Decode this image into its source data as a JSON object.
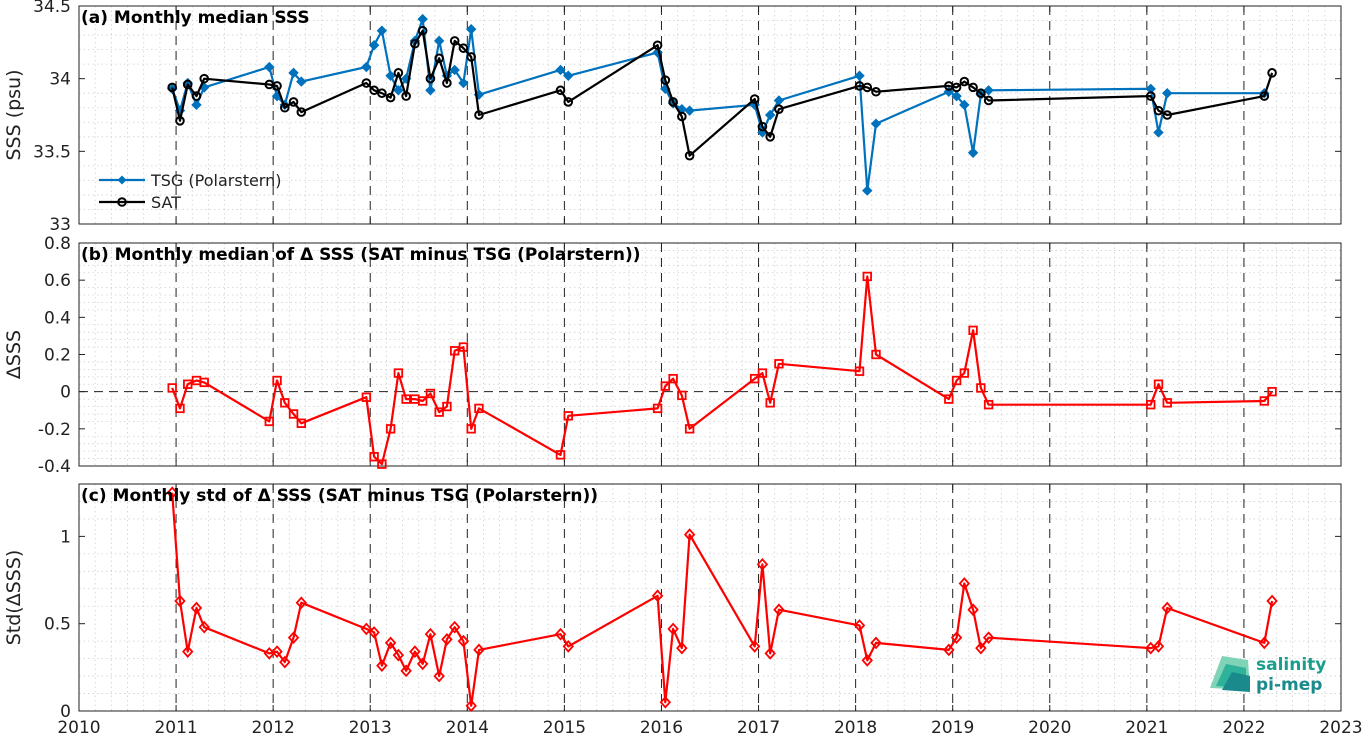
{
  "chart_data": [
    {
      "type": "line",
      "title": "(a) Monthly median SSS",
      "ylabel": "SSS (psu)",
      "xlabel": "",
      "xlim": [
        2010,
        2023
      ],
      "ylim": [
        33,
        34.5
      ],
      "yticks": [
        33,
        33.5,
        34,
        34.5
      ],
      "ytick_labels": [
        "33",
        "33.5",
        "34",
        "34.5"
      ],
      "legend": "lower-left",
      "grid": true,
      "series": [
        {
          "name": "TSG (Polarstern)",
          "color": "#0072bd",
          "marker": "diamond",
          "x": [
            2010.96,
            2011.04,
            2011.12,
            2011.21,
            2011.29,
            2011.96,
            2012.04,
            2012.12,
            2012.21,
            2012.29,
            2012.96,
            2013.04,
            2013.12,
            2013.21,
            2013.29,
            2013.37,
            2013.46,
            2013.54,
            2013.62,
            2013.71,
            2013.79,
            2013.87,
            2013.96,
            2014.04,
            2014.12,
            2014.96,
            2015.04,
            2015.96,
            2016.04,
            2016.12,
            2016.21,
            2016.29,
            2016.96,
            2017.04,
            2017.12,
            2017.21,
            2018.04,
            2018.12,
            2018.21,
            2018.96,
            2019.04,
            2019.12,
            2019.21,
            2019.29,
            2019.37,
            2021.04,
            2021.12,
            2021.21,
            2022.21
          ],
          "values": [
            33.93,
            33.78,
            33.97,
            33.82,
            33.94,
            34.08,
            33.88,
            33.82,
            34.04,
            33.98,
            34.08,
            34.23,
            34.33,
            34.02,
            33.92,
            34.0,
            34.26,
            34.41,
            33.92,
            34.26,
            34.02,
            34.06,
            33.97,
            34.34,
            33.89,
            34.06,
            34.02,
            34.18,
            33.93,
            33.83,
            33.79,
            33.78,
            33.82,
            33.63,
            33.75,
            33.85,
            34.02,
            33.23,
            33.69,
            33.91,
            33.88,
            33.82,
            33.49,
            33.89,
            33.92,
            33.93,
            33.63,
            33.9,
            33.9
          ]
        },
        {
          "name": "SAT",
          "color": "#000000",
          "marker": "circle",
          "x": [
            2010.96,
            2011.04,
            2011.12,
            2011.21,
            2011.29,
            2011.96,
            2012.04,
            2012.12,
            2012.21,
            2012.29,
            2012.96,
            2013.04,
            2013.12,
            2013.21,
            2013.29,
            2013.37,
            2013.46,
            2013.54,
            2013.62,
            2013.71,
            2013.79,
            2013.87,
            2013.96,
            2014.04,
            2014.12,
            2014.96,
            2015.04,
            2015.96,
            2016.04,
            2016.12,
            2016.21,
            2016.29,
            2016.96,
            2017.04,
            2017.12,
            2017.21,
            2018.04,
            2018.12,
            2018.21,
            2018.96,
            2019.04,
            2019.12,
            2019.21,
            2019.29,
            2019.37,
            2021.04,
            2021.12,
            2021.21,
            2022.21,
            2022.29
          ],
          "values": [
            33.94,
            33.71,
            33.96,
            33.88,
            34.0,
            33.96,
            33.95,
            33.8,
            33.84,
            33.77,
            33.97,
            33.92,
            33.9,
            33.87,
            34.04,
            33.88,
            34.24,
            34.33,
            34.0,
            34.14,
            33.97,
            34.26,
            34.21,
            34.15,
            33.75,
            33.92,
            33.84,
            34.23,
            33.99,
            33.84,
            33.74,
            33.47,
            33.86,
            33.67,
            33.6,
            33.79,
            33.95,
            33.94,
            33.91,
            33.95,
            33.94,
            33.98,
            33.94,
            33.9,
            33.85,
            33.88,
            33.78,
            33.75,
            33.88,
            34.04
          ]
        }
      ]
    },
    {
      "type": "line",
      "title": "(b) Monthly median of Δ SSS (SAT minus TSG (Polarstern))",
      "ylabel": "ΔSSS",
      "xlabel": "",
      "xlim": [
        2010,
        2023
      ],
      "ylim": [
        -0.4,
        0.8
      ],
      "yticks": [
        -0.4,
        -0.2,
        0,
        0.2,
        0.4,
        0.6,
        0.8
      ],
      "ytick_labels": [
        "-0.4",
        "-0.2",
        "0",
        "0.2",
        "0.4",
        "0.6",
        "0.8"
      ],
      "reference_line": 0,
      "grid": true,
      "series": [
        {
          "color": "#ff0000",
          "marker": "square",
          "x": [
            2010.96,
            2011.04,
            2011.12,
            2011.21,
            2011.29,
            2011.96,
            2012.04,
            2012.12,
            2012.21,
            2012.29,
            2012.96,
            2013.04,
            2013.12,
            2013.21,
            2013.29,
            2013.37,
            2013.46,
            2013.54,
            2013.62,
            2013.71,
            2013.79,
            2013.87,
            2013.96,
            2014.04,
            2014.12,
            2014.96,
            2015.04,
            2015.96,
            2016.04,
            2016.12,
            2016.21,
            2016.29,
            2016.96,
            2017.04,
            2017.12,
            2017.21,
            2018.04,
            2018.12,
            2018.21,
            2018.96,
            2019.04,
            2019.12,
            2019.21,
            2019.29,
            2019.37,
            2021.04,
            2021.12,
            2021.21,
            2022.21,
            2022.29
          ],
          "values": [
            0.02,
            -0.09,
            0.04,
            0.06,
            0.05,
            -0.16,
            0.06,
            -0.06,
            -0.12,
            -0.17,
            -0.03,
            -0.35,
            -0.39,
            -0.2,
            0.1,
            -0.04,
            -0.04,
            -0.05,
            -0.01,
            -0.11,
            -0.08,
            0.22,
            0.24,
            -0.2,
            -0.09,
            -0.34,
            -0.13,
            -0.09,
            0.03,
            0.07,
            -0.02,
            -0.2,
            0.07,
            0.1,
            -0.06,
            0.15,
            0.11,
            0.62,
            0.2,
            -0.04,
            0.06,
            0.1,
            0.33,
            0.02,
            -0.07,
            -0.07,
            0.04,
            -0.06,
            -0.05,
            0.0
          ]
        }
      ]
    },
    {
      "type": "line",
      "title": "(c) Monthly std of Δ SSS (SAT minus TSG (Polarstern))",
      "ylabel": "Std(ΔSSS)",
      "xlabel": "",
      "xlim": [
        2010,
        2023
      ],
      "ylim": [
        0,
        1.3
      ],
      "yticks": [
        0,
        0.5,
        1
      ],
      "ytick_labels": [
        "0",
        "0.5",
        "1"
      ],
      "xticks": [
        2010,
        2011,
        2012,
        2013,
        2014,
        2015,
        2016,
        2017,
        2018,
        2019,
        2020,
        2021,
        2022,
        2023
      ],
      "xtick_labels": [
        "2010",
        "2011",
        "2012",
        "2013",
        "2014",
        "2015",
        "2016",
        "2017",
        "2018",
        "2019",
        "2020",
        "2021",
        "2022",
        "2023"
      ],
      "grid": true,
      "series": [
        {
          "color": "#ff0000",
          "marker": "diamond-open",
          "x": [
            2010.96,
            2011.04,
            2011.12,
            2011.21,
            2011.29,
            2011.96,
            2012.04,
            2012.12,
            2012.21,
            2012.29,
            2012.96,
            2013.04,
            2013.12,
            2013.21,
            2013.29,
            2013.37,
            2013.46,
            2013.54,
            2013.62,
            2013.71,
            2013.79,
            2013.87,
            2013.96,
            2014.04,
            2014.12,
            2014.96,
            2015.04,
            2015.96,
            2016.04,
            2016.12,
            2016.21,
            2016.29,
            2016.96,
            2017.04,
            2017.12,
            2017.21,
            2018.04,
            2018.12,
            2018.21,
            2018.96,
            2019.04,
            2019.12,
            2019.21,
            2019.29,
            2019.37,
            2021.04,
            2021.12,
            2021.21,
            2022.21,
            2022.29
          ],
          "values": [
            1.25,
            0.63,
            0.34,
            0.59,
            0.48,
            0.33,
            0.34,
            0.28,
            0.42,
            0.62,
            0.47,
            0.45,
            0.26,
            0.39,
            0.32,
            0.23,
            0.34,
            0.27,
            0.44,
            0.2,
            0.41,
            0.48,
            0.4,
            0.03,
            0.35,
            0.44,
            0.37,
            0.66,
            0.05,
            0.47,
            0.36,
            1.01,
            0.37,
            0.84,
            0.33,
            0.58,
            0.49,
            0.29,
            0.39,
            0.35,
            0.42,
            0.73,
            0.58,
            0.36,
            0.42,
            0.36,
            0.37,
            0.59,
            0.39,
            0.63
          ]
        }
      ]
    }
  ],
  "logo": {
    "line1": "salinity",
    "line2": "pi-mep"
  }
}
